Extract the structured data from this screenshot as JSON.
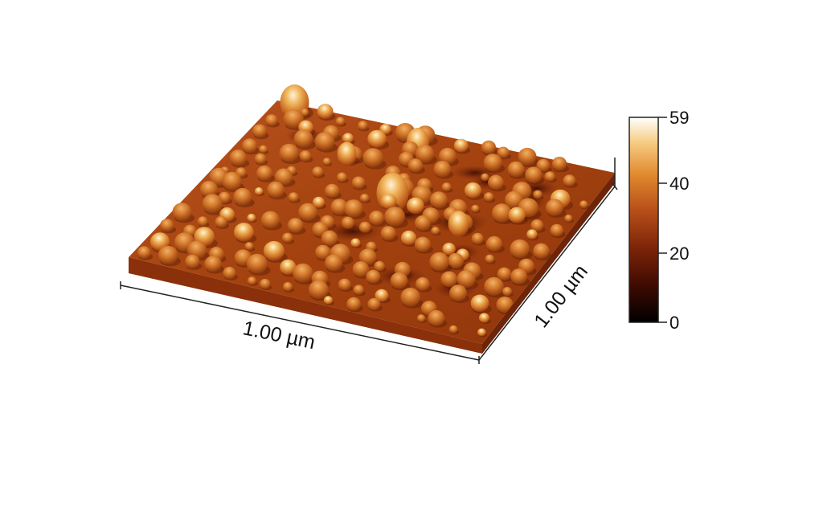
{
  "x_axis_label": "1.00 µm",
  "y_axis_label": "1.00 µm",
  "colorbar": {
    "ticks": [
      "59",
      "40",
      "20",
      "0"
    ],
    "tick_values": [
      59,
      40,
      20,
      0
    ],
    "max": 59,
    "min": 0,
    "colors": [
      "#000000",
      "#4a0b02",
      "#8a2a0a",
      "#c0521a",
      "#e6902f",
      "#f5c77a",
      "#ffffff"
    ]
  }
}
